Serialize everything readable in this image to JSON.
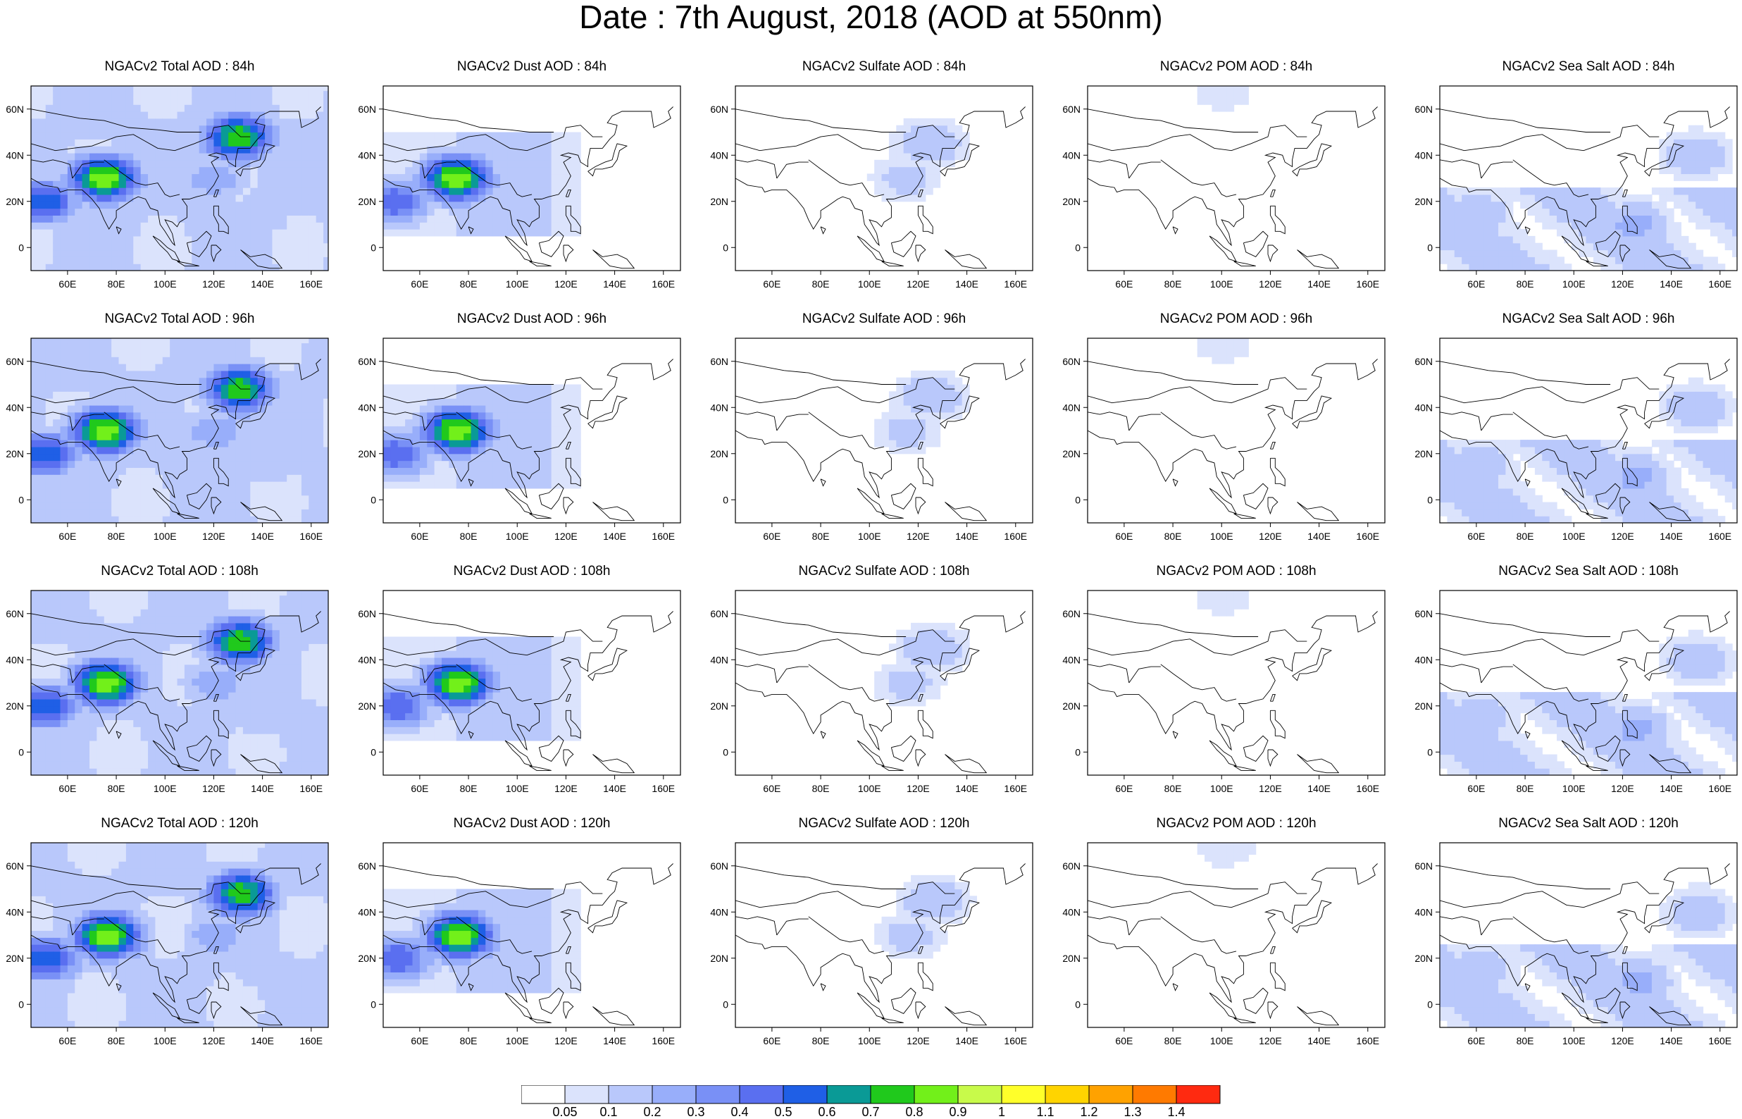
{
  "title": "Date : 7th August, 2018 (AOD at 550nm)",
  "x_tick_labels": [
    "60E",
    "80E",
    "100E",
    "120E",
    "140E",
    "160E"
  ],
  "y_tick_labels": [
    "60N",
    "40N",
    "20N",
    "0"
  ],
  "panel_titles": [
    [
      "NGACv2 Total AOD : 84h",
      "NGACv2 Dust AOD : 84h",
      "NGACv2 Sulfate AOD : 84h",
      "NGACv2 POM AOD : 84h",
      "NGACv2 Sea Salt AOD : 84h"
    ],
    [
      "NGACv2 Total AOD : 96h",
      "NGACv2 Dust AOD : 96h",
      "NGACv2 Sulfate AOD : 96h",
      "NGACv2 POM AOD : 96h",
      "NGACv2 Sea Salt AOD : 96h"
    ],
    [
      "NGACv2 Total AOD : 108h",
      "NGACv2 Dust AOD : 108h",
      "NGACv2 Sulfate AOD : 108h",
      "NGACv2 POM AOD : 108h",
      "NGACv2 Sea Salt AOD : 108h"
    ],
    [
      "NGACv2 Total AOD : 120h",
      "NGACv2 Dust AOD : 120h",
      "NGACv2 Sulfate AOD : 120h",
      "NGACv2 POM AOD : 120h",
      "NGACv2 Sea Salt  AOD : 120h"
    ]
  ],
  "colorbar": {
    "labels": [
      "0.05",
      "0.1",
      "0.2",
      "0.3",
      "0.4",
      "0.5",
      "0.6",
      "0.7",
      "0.8",
      "0.9",
      "1",
      "1.1",
      "1.2",
      "1.3",
      "1.4"
    ],
    "colors": [
      "#ffffff",
      "#dbe3fc",
      "#b9c8fb",
      "#98aefa",
      "#7990f6",
      "#5a6ff0",
      "#1f5fe6",
      "#0a9a96",
      "#20c91c",
      "#72f01a",
      "#c8fa4a",
      "#ffff2a",
      "#ffd400",
      "#ffa200",
      "#ff7a00",
      "#ff2a10"
    ]
  },
  "chart_data": {
    "type": "heatmap",
    "title": "Date : 7th August, 2018 (AOD at 550nm)",
    "quantity": "AOD at 550nm",
    "date": "7th August, 2018",
    "forecast_hours": [
      "84h",
      "96h",
      "108h",
      "120h"
    ],
    "species": [
      "Total",
      "Dust",
      "Sulfate",
      "POM",
      "Sea Salt"
    ],
    "lon_range": [
      45,
      167
    ],
    "lat_range": [
      -10,
      70
    ],
    "contour_levels": [
      0.05,
      0.1,
      0.2,
      0.3,
      0.4,
      0.5,
      0.6,
      0.7,
      0.8,
      0.9,
      1,
      1.1,
      1.2,
      1.3,
      1.4
    ],
    "colormap_colors": [
      "#ffffff",
      "#dbe3fc",
      "#b9c8fb",
      "#98aefa",
      "#7990f6",
      "#5a6ff0",
      "#1f5fe6",
      "#0a9a96",
      "#20c91c",
      "#72f01a",
      "#c8fa4a",
      "#ffff2a",
      "#ffd400",
      "#ffa200",
      "#ff7a00",
      "#ff2a10"
    ],
    "features": [
      {
        "species": "Total",
        "lon": 50,
        "lat": 20,
        "value": 0.6
      },
      {
        "species": "Total",
        "lon": 75,
        "lat": 30,
        "value": 0.9
      },
      {
        "species": "Total",
        "lon": 130,
        "lat": 48,
        "value": 0.8
      },
      {
        "species": "Total",
        "lon": 120,
        "lat": 30,
        "value": 0.3
      },
      {
        "species": "Total",
        "lon": 140,
        "lat": 15,
        "value": 0.2
      },
      {
        "species": "Dust",
        "lon": 50,
        "lat": 20,
        "value": 0.5
      },
      {
        "species": "Dust",
        "lon": 75,
        "lat": 30,
        "value": 0.9
      },
      {
        "species": "Dust",
        "lon": 100,
        "lat": 38,
        "value": 0.2
      },
      {
        "species": "Sulfate",
        "lon": 125,
        "lat": 45,
        "value": 0.2
      },
      {
        "species": "Sulfate",
        "lon": 115,
        "lat": 30,
        "value": 0.15
      },
      {
        "species": "POM",
        "lon": 100,
        "lat": 68,
        "value": 0.1
      },
      {
        "species": "Sea Salt",
        "lon": 60,
        "lat": 15,
        "value": 0.2
      },
      {
        "species": "Sea Salt",
        "lon": 125,
        "lat": 10,
        "value": 0.25
      },
      {
        "species": "Sea Salt",
        "lon": 150,
        "lat": 40,
        "value": 0.2
      }
    ]
  }
}
